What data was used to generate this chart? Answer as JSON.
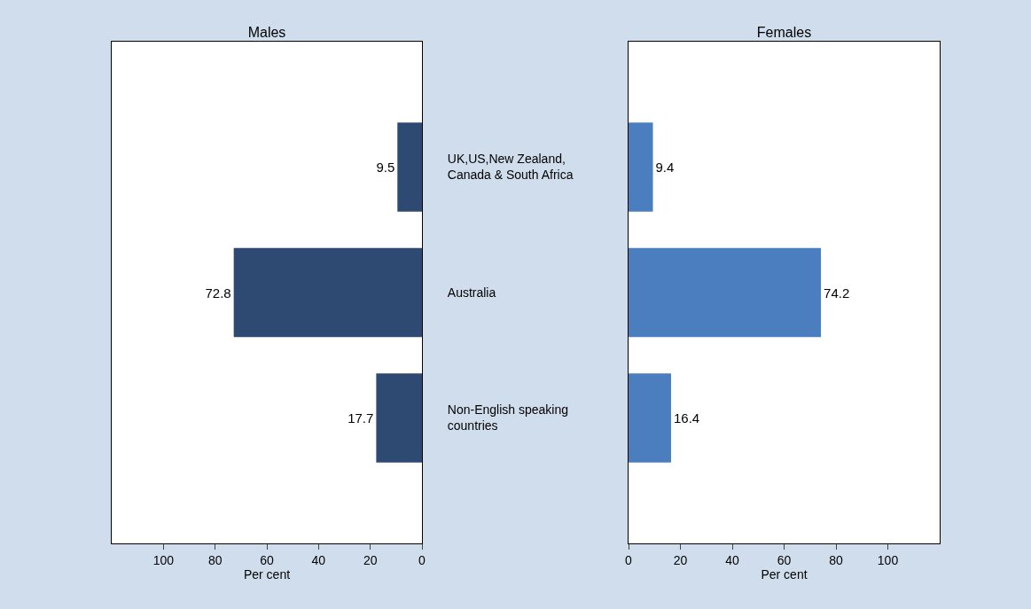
{
  "chart_data": [
    {
      "type": "bar",
      "orientation": "horizontal",
      "title": "Males",
      "xlabel": "Per cent",
      "categories": [
        "UK,US,New Zealand,\nCanada & South Africa",
        "Australia",
        "Non-English speaking\ncountries"
      ],
      "values": [
        9.5,
        72.8,
        17.7
      ],
      "color": "#2e4a72",
      "xlim": [
        120,
        0
      ],
      "xticks": [
        100,
        80,
        60,
        40,
        20,
        0
      ],
      "data_labels": true,
      "grid": false,
      "legend": false
    },
    {
      "type": "bar",
      "orientation": "horizontal",
      "title": "Females",
      "xlabel": "Per cent",
      "categories": [
        null,
        null,
        null
      ],
      "values": [
        9.4,
        74.2,
        16.4
      ],
      "color": "#4a7ebf",
      "xlim": [
        0,
        120
      ],
      "xticks": [
        0,
        20,
        40,
        60,
        80,
        100
      ],
      "data_labels": true,
      "grid": false,
      "legend": false,
      "tick_labels": "x"
    }
  ]
}
